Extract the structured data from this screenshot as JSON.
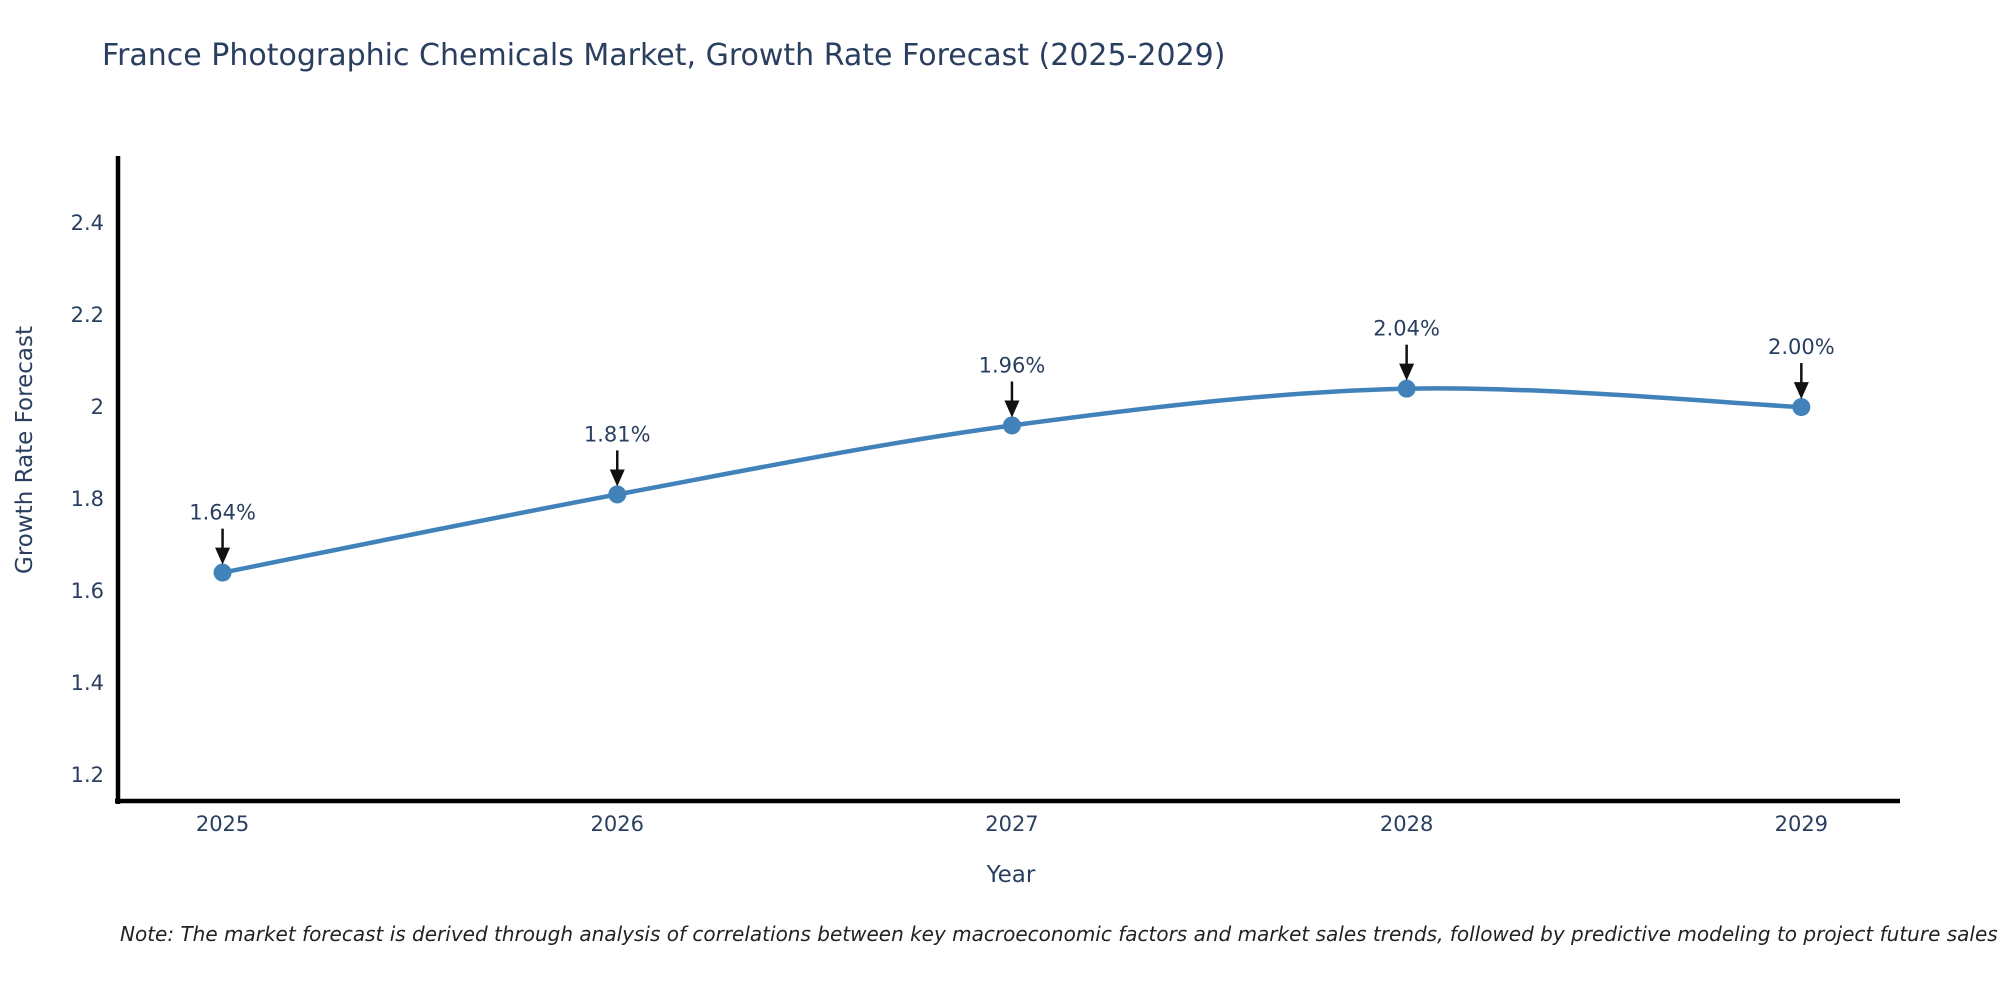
{
  "title": {
    "text": "France Photographic Chemicals Market, Growth Rate Forecast (2025-2029)",
    "color": "#2a3f5f"
  },
  "note": {
    "text": "Note: The market forecast is derived through analysis of correlations between key macroeconomic factors and market sales trends, followed by predictive modeling to project future sales"
  },
  "chart_data": {
    "type": "line",
    "title": "France Photographic Chemicals Market, Growth Rate Forecast (2025-2029)",
    "xlabel": "Year",
    "ylabel": "Growth Rate Forecast",
    "x": [
      2025,
      2026,
      2027,
      2028,
      2029
    ],
    "series": [
      {
        "name": "Growth Rate Forecast",
        "values": [
          1.64,
          1.81,
          1.96,
          2.04,
          2.0
        ]
      }
    ],
    "point_labels": [
      "1.64%",
      "1.81%",
      "1.96%",
      "2.04%",
      "2.00%"
    ],
    "x_tick_labels": [
      "2025",
      "2026",
      "2027",
      "2028",
      "2029"
    ],
    "y_tick_values": [
      2.4,
      2.2,
      2.0,
      1.8,
      1.6,
      1.4,
      1.2
    ],
    "y_tick_labels": [
      "2.4",
      "2.2",
      "2",
      "1.8",
      "1.6",
      "1.4",
      "1.2"
    ],
    "xlim": [
      2024.73,
      2029.25
    ],
    "ylim": [
      1.139,
      2.546
    ],
    "grid": false,
    "legend": false,
    "line_shape": "spline",
    "colors": {
      "line": "#4182ba",
      "marker": "#4182ba",
      "annotation_text": "#2a3f5f",
      "annotation_arrow": "#111111",
      "axis_line": "#000000",
      "tick_label": "#2a3f5f"
    }
  }
}
